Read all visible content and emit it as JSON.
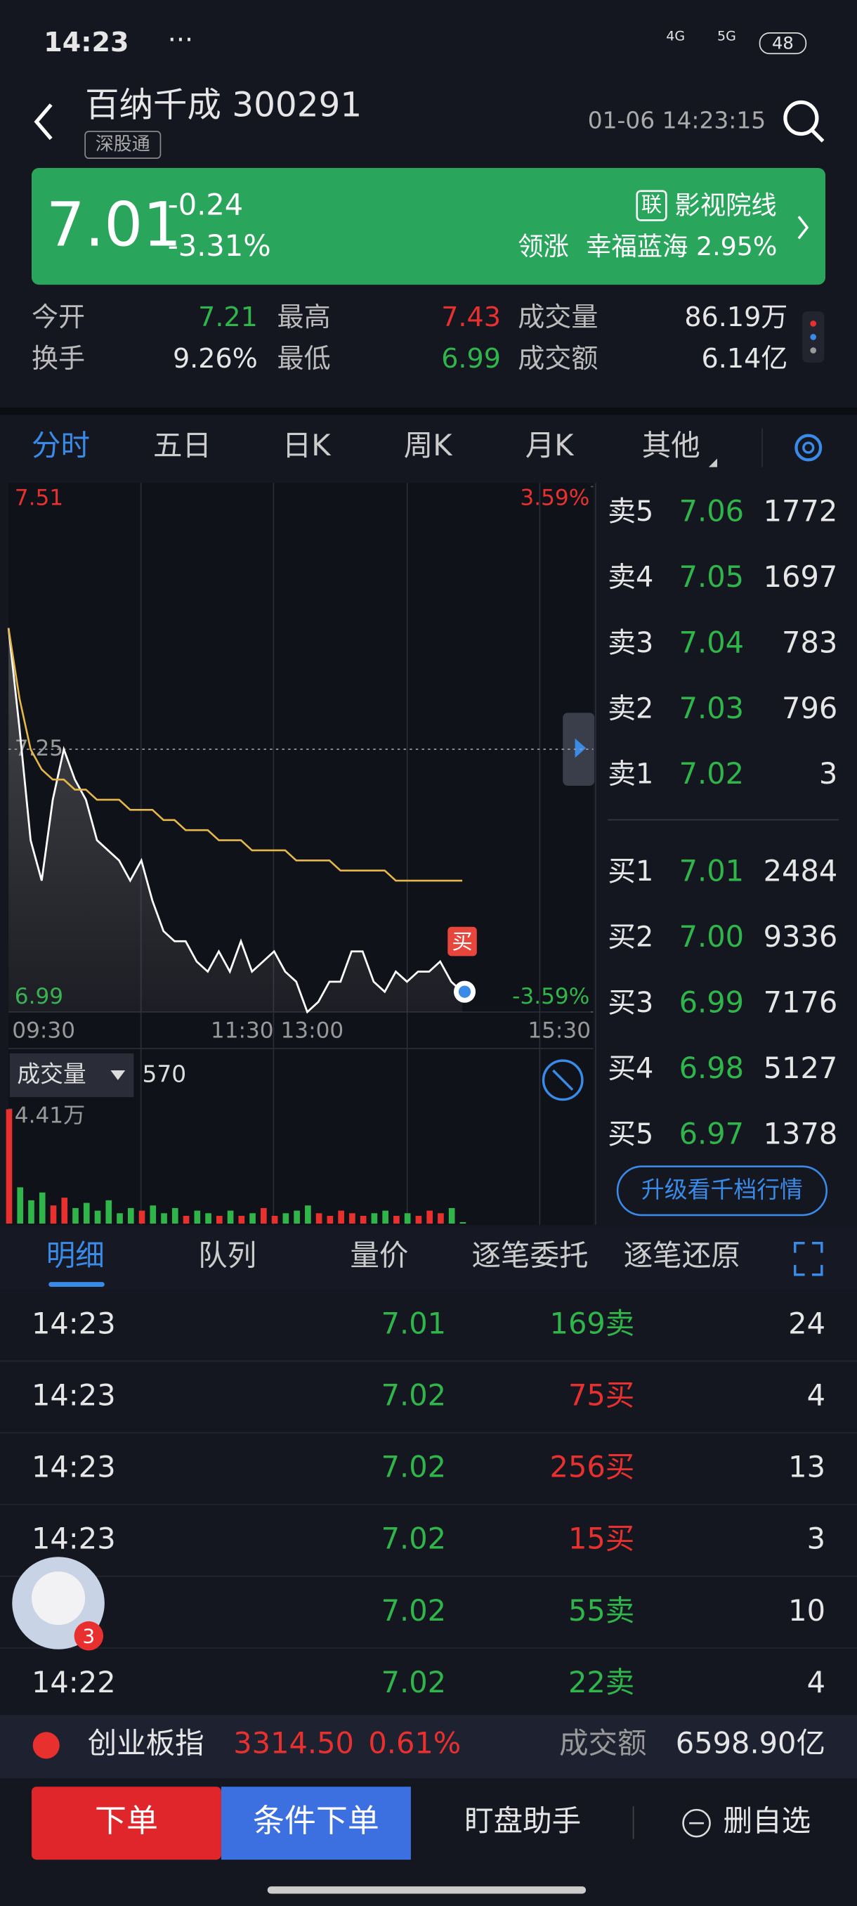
{
  "status_bar": {
    "time": "14:23",
    "dots": "···",
    "net1": "4G",
    "net2": "5G",
    "battery": "48"
  },
  "header": {
    "title": "百纳千成 300291",
    "tag": "深股通",
    "datetime": "01-06 14:23:15"
  },
  "quote": {
    "price": "7.01",
    "change": "-0.24",
    "change_pct": "-3.31%",
    "sector_badge": "联",
    "sector": "影视院线",
    "leader_label": "领涨",
    "leader": "幸福蓝海 2.95%"
  },
  "stats": [
    {
      "label": "今开",
      "value": "7.21",
      "color": "#2fb54a"
    },
    {
      "label": "最高",
      "value": "7.43",
      "color": "#e8312f"
    },
    {
      "label": "成交量",
      "value": "86.19万",
      "color": "#e6e6e6"
    },
    {
      "label": "换手",
      "value": "9.26%",
      "color": "#e6e6e6"
    },
    {
      "label": "最低",
      "value": "6.99",
      "color": "#2fb54a"
    },
    {
      "label": "成交额",
      "value": "6.14亿",
      "color": "#e6e6e6"
    }
  ],
  "tabs": [
    "分时",
    "五日",
    "日K",
    "周K",
    "月K",
    "其他"
  ],
  "chart_data": {
    "type": "line",
    "ylim": [
      6.99,
      7.51
    ],
    "yticks": [
      7.51,
      7.25,
      6.99
    ],
    "y2lim": [
      -3.59,
      3.59
    ],
    "y2ticks": [
      {
        "value": 3.59,
        "label": "3.59%"
      },
      {
        "value": -3.59,
        "label": "-3.59%"
      }
    ],
    "x_labels": [
      "09:30",
      "11:30 13:00",
      "15:30"
    ],
    "buy_marker": "买",
    "series": [
      {
        "name": "价格",
        "color": "#ffffff",
        "values": [
          7.37,
          7.27,
          7.16,
          7.12,
          7.2,
          7.25,
          7.22,
          7.2,
          7.16,
          7.15,
          7.14,
          7.12,
          7.14,
          7.1,
          7.07,
          7.06,
          7.06,
          7.04,
          7.03,
          7.05,
          7.03,
          7.06,
          7.03,
          7.04,
          7.05,
          7.03,
          7.02,
          6.99,
          7.0,
          7.02,
          7.02,
          7.05,
          7.05,
          7.02,
          7.01,
          7.03,
          7.02,
          7.03,
          7.03,
          7.04,
          7.02,
          7.01
        ]
      },
      {
        "name": "均价",
        "color": "#e6b84a",
        "values": [
          7.37,
          7.3,
          7.25,
          7.23,
          7.22,
          7.22,
          7.21,
          7.21,
          7.2,
          7.2,
          7.2,
          7.19,
          7.19,
          7.19,
          7.18,
          7.18,
          7.17,
          7.17,
          7.17,
          7.16,
          7.16,
          7.16,
          7.15,
          7.15,
          7.15,
          7.15,
          7.14,
          7.14,
          7.14,
          7.14,
          7.13,
          7.13,
          7.13,
          7.13,
          7.13,
          7.12,
          7.12,
          7.12,
          7.12,
          7.12,
          7.12,
          7.12
        ]
      }
    ]
  },
  "volume_chart": {
    "type": "bar",
    "label": "成交量",
    "current": "570",
    "ylim": [
      0,
      44100
    ],
    "yticks": [
      {
        "value": 44100,
        "label": "4.41万"
      }
    ],
    "up_color": "#e8312f",
    "down_color": "#2fb54a",
    "values": [
      44100,
      14000,
      9000,
      12000,
      7000,
      10000,
      6000,
      8000,
      5000,
      9000,
      4000,
      6000,
      5000,
      7000,
      4000,
      6000,
      3000,
      5000,
      4000,
      3000,
      5000,
      3000,
      4000,
      6000,
      3000,
      4000,
      5000,
      7000,
      4000,
      3000,
      5000,
      4000,
      3000,
      4000,
      5000,
      3000,
      4000,
      3000,
      5000,
      4000,
      6000,
      570
    ]
  },
  "order_book": {
    "asks": [
      {
        "label": "卖5",
        "price": "7.06",
        "volume": "1772"
      },
      {
        "label": "卖4",
        "price": "7.05",
        "volume": "1697"
      },
      {
        "label": "卖3",
        "price": "7.04",
        "volume": "783"
      },
      {
        "label": "卖2",
        "price": "7.03",
        "volume": "796"
      },
      {
        "label": "卖1",
        "price": "7.02",
        "volume": "3"
      }
    ],
    "bids": [
      {
        "label": "买1",
        "price": "7.01",
        "volume": "2484"
      },
      {
        "label": "买2",
        "price": "7.00",
        "volume": "9336"
      },
      {
        "label": "买3",
        "price": "6.99",
        "volume": "7176"
      },
      {
        "label": "买4",
        "price": "6.98",
        "volume": "5127"
      },
      {
        "label": "买5",
        "price": "6.97",
        "volume": "1378"
      }
    ],
    "upgrade": "升级看千档行情"
  },
  "detail_tabs": [
    "明细",
    "队列",
    "量价",
    "逐笔委托",
    "逐笔还原"
  ],
  "trades": [
    {
      "time": "14:23",
      "price": "7.01",
      "volume": "169卖",
      "count": "24",
      "color": "#2fb54a"
    },
    {
      "time": "14:23",
      "price": "7.02",
      "volume": "75买",
      "count": "4",
      "color": "#e8312f"
    },
    {
      "time": "14:23",
      "price": "7.02",
      "volume": "256买",
      "count": "13",
      "color": "#e8312f"
    },
    {
      "time": "14:23",
      "price": "7.02",
      "volume": "15买",
      "count": "3",
      "color": "#e8312f"
    },
    {
      "time": null,
      "price": "7.02",
      "volume": "55卖",
      "count": "10",
      "color": "#2fb54a"
    },
    {
      "time": "14:22",
      "price": "7.02",
      "volume": "22卖",
      "count": "4",
      "color": "#2fb54a"
    }
  ],
  "avatar_badge": "3",
  "index_bar": {
    "name": "创业板指",
    "value": "3314.50",
    "change": "0.61%",
    "turnover_label": "成交额",
    "turnover": "6598.90亿"
  },
  "actions": {
    "order": "下单",
    "conditional": "条件下单",
    "assistant": "盯盘助手",
    "remove": "删自选"
  }
}
